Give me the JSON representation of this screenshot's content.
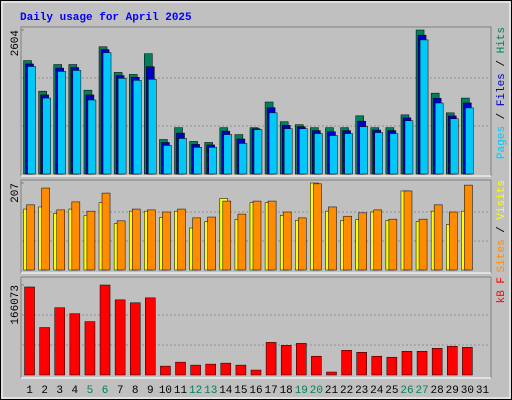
{
  "chart_data": {
    "title": "Daily usage for April 2025",
    "legend_separator": " / ",
    "categories": [
      "1",
      "2",
      "3",
      "4",
      "5",
      "6",
      "7",
      "8",
      "9",
      "10",
      "11",
      "12",
      "13",
      "14",
      "15",
      "16",
      "17",
      "18",
      "19",
      "20",
      "21",
      "22",
      "23",
      "24",
      "25",
      "26",
      "27",
      "28",
      "29",
      "30",
      "31"
    ],
    "category_colors": [
      "#000000",
      "#000000",
      "#000000",
      "#000000",
      "#00805c",
      "#00805c",
      "#000000",
      "#000000",
      "#000000",
      "#000000",
      "#000000",
      "#00805c",
      "#00805c",
      "#000000",
      "#000000",
      "#000000",
      "#000000",
      "#000000",
      "#00805c",
      "#00805c",
      "#000000",
      "#000000",
      "#000000",
      "#000000",
      "#000000",
      "#00805c",
      "#00805c",
      "#000000",
      "#000000",
      "#000000",
      "#000000"
    ],
    "panels": [
      {
        "type": "bar",
        "ylim": [
          0,
          2604
        ],
        "yticks": [
          2604
        ],
        "series": [
          {
            "name": "Hits",
            "color": "#00805c",
            "values": [
              2051,
              1498,
              1980,
              1980,
              1516,
              2301,
              1837,
              1801,
              2176,
              624,
              838,
              589,
              571,
              838,
              713,
              838,
              1302,
              945,
              892,
              838,
              838,
              838,
              1052,
              838,
              838,
              1070,
              2604,
              1462,
              1106,
              1373,
              null
            ]
          },
          {
            "name": "Files",
            "color": "#0000c0",
            "values": [
              1990,
              1430,
              1915,
              1925,
              1430,
              2250,
              1780,
              1750,
              1940,
              570,
              740,
              535,
              525,
              775,
              633,
              820,
              1200,
              880,
              855,
              785,
              765,
              785,
              955,
              795,
              785,
              1015,
              2510,
              1370,
              1050,
              1285,
              null
            ]
          },
          {
            "name": "Pages",
            "color": "#00c8f8",
            "values": [
              1944,
              1373,
              1855,
              1873,
              1338,
              2194,
              1730,
              1694,
              1712,
              517,
              642,
              482,
              482,
              713,
              553,
              803,
              1106,
              820,
              820,
              731,
              696,
              731,
              856,
              749,
              731,
              963,
              2425,
              1284,
              999,
              1195,
              null
            ]
          }
        ]
      },
      {
        "type": "bar",
        "ylim": [
          0,
          207
        ],
        "yticks": [
          207
        ],
        "series": [
          {
            "name": "Visits",
            "color": "#ffff00",
            "values": [
              145,
              150,
              135,
              145,
              130,
              160,
              110,
              140,
              140,
              125,
              140,
              100,
              115,
              170,
              120,
              160,
              160,
              130,
              118,
              207,
              140,
              118,
              120,
              138,
              118,
              188,
              115,
              140,
              108,
              140,
              null
            ]
          },
          {
            "name": "Sites",
            "color": "#ff8c00",
            "values": [
              155,
              195,
              143,
              162,
              140,
              183,
              117,
              145,
              143,
              138,
              145,
              124,
              126,
              164,
              133,
              164,
              164,
              138,
              124,
              205,
              150,
              128,
              136,
              143,
              121,
              188,
              121,
              155,
              138,
              202,
              null
            ]
          }
        ]
      },
      {
        "type": "bar",
        "ylim": [
          0,
          166073
        ],
        "yticks": [
          166073
        ],
        "series": [
          {
            "name": "kB F",
            "color": "#ff0000",
            "values": [
              162423,
              87600,
              124100,
              113150,
              98550,
              166073,
              138700,
              133220,
              142350,
              16420,
              23720,
              18250,
              20075,
              21900,
              18250,
              9125,
              60225,
              54750,
              58400,
              34675,
              5475,
              45625,
              41975,
              34675,
              32850,
              43800,
              43800,
              49275,
              52925,
              51100,
              null
            ]
          }
        ]
      }
    ]
  }
}
